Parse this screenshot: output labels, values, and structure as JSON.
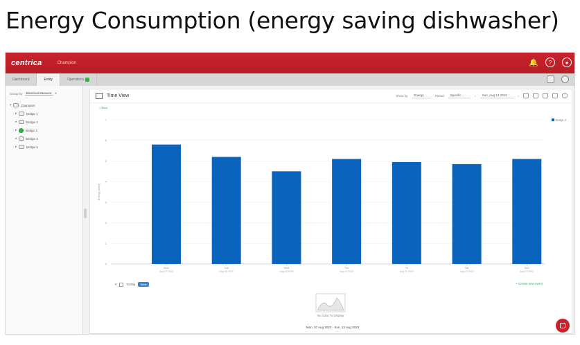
{
  "slide": {
    "title": "Energy Consumption (energy saving dishwasher)"
  },
  "app": {
    "logo": "centrica",
    "app_name": "Champion",
    "topbar_icons": [
      "bell-icon",
      "help-icon",
      "user-icon"
    ],
    "accent_color": "#c8232c"
  },
  "tabs": [
    {
      "label": "Dashboard",
      "active": false
    },
    {
      "label": "Entity",
      "active": true
    },
    {
      "label": "Operations",
      "active": false,
      "badge_color": "#35b24a"
    }
  ],
  "sidebar": {
    "group_by_label": "Group by",
    "group_by_value": "Electrical Measure",
    "root": "Champion",
    "items": [
      "Bridge 1",
      "Bridge 2",
      "Bridge 3",
      "Bridge 4",
      "Bridge 5"
    ],
    "selected_index": 2
  },
  "panel": {
    "title": "Time View",
    "show_by_label": "Show by",
    "show_by_value": "Energy",
    "period_label": "Period",
    "period_value": "Specific...",
    "date_value": "Sun, Aug 13 2023",
    "back_link": "< Back",
    "toggle_label": "Tooltip",
    "toggle_pill": "Table",
    "create_link": "Create new event",
    "no_data": "No Data To Display",
    "range": "Mon, 07 Aug 2023 - Sun, 13 Aug 2023"
  },
  "chart_data": {
    "type": "bar",
    "categories": [
      "Mon",
      "Tue",
      "Wed",
      "Thu",
      "Fri",
      "Sat",
      "Sun"
    ],
    "sub_labels": [
      "Aug 07 2023",
      "Aug 08 2023",
      "Aug 09 2023",
      "Aug 10 2023",
      "Aug 11 2023",
      "Aug 12 2023",
      "Aug 13 2023"
    ],
    "series": [
      {
        "name": "Bridge 3",
        "values": [
          5.8,
          5.2,
          4.5,
          5.1,
          4.95,
          4.85,
          5.1
        ],
        "color": "#0a64be"
      }
    ],
    "ylabel": "Energy (kWh)",
    "ylim": [
      0,
      7
    ],
    "yticks": [
      0,
      1,
      2,
      3,
      4,
      5,
      6,
      7
    ],
    "grid": true,
    "legend": "top-right"
  }
}
